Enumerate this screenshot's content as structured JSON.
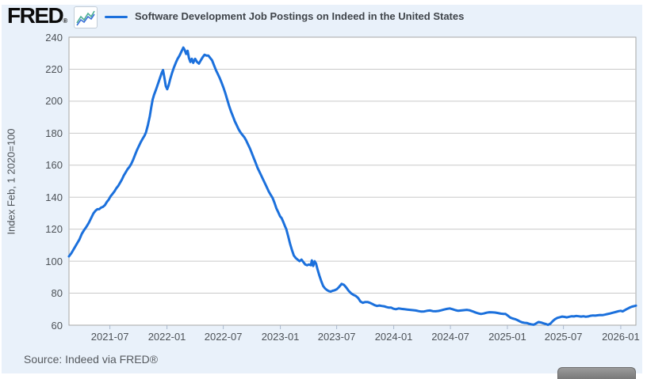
{
  "header": {
    "logo_text": "FRED",
    "logo_reg": "®",
    "title": "Software Development Job Postings on Indeed in the United States"
  },
  "footer": {
    "source": "Source: Indeed via FRED®"
  },
  "colors": {
    "series_blue": "#1b70dc",
    "logo_icon_blue": "#3a6fd8",
    "logo_icon_green": "#4caf93",
    "card_background": "#e9f1fa",
    "plot_background": "#ffffff",
    "gridline": "#c9c9c9",
    "plot_border": "#a6a6a6",
    "tick_mark": "#aab8cc"
  },
  "chart_data": {
    "type": "line",
    "title": "Software Development Job Postings on Indeed in the United States",
    "xlabel": "",
    "ylabel": "Index Feb, 1 2020=100",
    "legend_position": "top",
    "grid": "horizontal",
    "ylim": [
      60,
      240
    ],
    "y_ticks": [
      240,
      220,
      200,
      180,
      160,
      140,
      120,
      100,
      80,
      60
    ],
    "xlim": [
      0,
      60
    ],
    "x_unit": "months since 2021-02-20",
    "x_ticks": [
      {
        "label": "2021-07",
        "t": 4.33
      },
      {
        "label": "2022-01",
        "t": 10.37
      },
      {
        "label": "2022-07",
        "t": 16.33
      },
      {
        "label": "2023-01",
        "t": 22.37
      },
      {
        "label": "2023-07",
        "t": 28.33
      },
      {
        "label": "2024-01",
        "t": 34.37
      },
      {
        "label": "2024-07",
        "t": 40.37
      },
      {
        "label": "2025-01",
        "t": 46.4
      },
      {
        "label": "2025-07",
        "t": 52.33
      },
      {
        "label": "2026-01",
        "t": 58.4
      }
    ],
    "series": [
      {
        "name": "Software Development Job Postings on Indeed in the United States",
        "color": "#1b70dc",
        "points": [
          [
            0,
            103
          ],
          [
            0.25,
            105
          ],
          [
            0.5,
            107.5
          ],
          [
            0.8,
            110.5
          ],
          [
            1.1,
            113.5
          ],
          [
            1.35,
            117
          ],
          [
            1.6,
            119.5
          ],
          [
            1.85,
            121.5
          ],
          [
            2.1,
            124
          ],
          [
            2.35,
            127
          ],
          [
            2.6,
            130
          ],
          [
            2.8,
            131.5
          ],
          [
            3,
            132.5
          ],
          [
            3.2,
            132.5
          ],
          [
            3.4,
            133.5
          ],
          [
            3.6,
            134
          ],
          [
            3.8,
            135
          ],
          [
            4,
            137
          ],
          [
            4.2,
            138.5
          ],
          [
            4.4,
            140.5
          ],
          [
            4.6,
            142
          ],
          [
            4.8,
            143.5
          ],
          [
            5,
            145.5
          ],
          [
            5.2,
            147
          ],
          [
            5.4,
            149
          ],
          [
            5.6,
            151
          ],
          [
            5.8,
            153.5
          ],
          [
            6,
            155.5
          ],
          [
            6.2,
            157.5
          ],
          [
            6.4,
            159
          ],
          [
            6.6,
            161
          ],
          [
            6.8,
            163.5
          ],
          [
            7,
            166.5
          ],
          [
            7.2,
            169.5
          ],
          [
            7.4,
            172
          ],
          [
            7.6,
            174.5
          ],
          [
            7.8,
            176.5
          ],
          [
            8,
            178.5
          ],
          [
            8.15,
            180.5
          ],
          [
            8.35,
            185
          ],
          [
            8.55,
            190.5
          ],
          [
            8.7,
            196
          ],
          [
            8.85,
            201
          ],
          [
            9,
            204
          ],
          [
            9.2,
            207
          ],
          [
            9.4,
            210.5
          ],
          [
            9.6,
            214
          ],
          [
            9.8,
            217.5
          ],
          [
            9.95,
            219.5
          ],
          [
            10.1,
            214.5
          ],
          [
            10.25,
            209.5
          ],
          [
            10.4,
            207.5
          ],
          [
            10.55,
            210
          ],
          [
            10.7,
            213.5
          ],
          [
            10.9,
            217.5
          ],
          [
            11.1,
            221
          ],
          [
            11.3,
            224
          ],
          [
            11.5,
            226.5
          ],
          [
            11.7,
            228.5
          ],
          [
            11.9,
            231
          ],
          [
            12.1,
            233.5
          ],
          [
            12.25,
            232
          ],
          [
            12.4,
            229.5
          ],
          [
            12.55,
            231.5
          ],
          [
            12.7,
            227
          ],
          [
            12.85,
            224.5
          ],
          [
            13,
            226.5
          ],
          [
            13.15,
            224
          ],
          [
            13.35,
            226.5
          ],
          [
            13.55,
            224.5
          ],
          [
            13.75,
            223.5
          ],
          [
            13.95,
            225.5
          ],
          [
            14.15,
            227.5
          ],
          [
            14.35,
            229
          ],
          [
            14.55,
            228.5
          ],
          [
            14.75,
            228.5
          ],
          [
            14.95,
            227
          ],
          [
            15.15,
            225.5
          ],
          [
            15.35,
            222.5
          ],
          [
            15.55,
            219.5
          ],
          [
            15.75,
            217
          ],
          [
            15.95,
            214.5
          ],
          [
            16.15,
            211.5
          ],
          [
            16.35,
            208.5
          ],
          [
            16.55,
            205
          ],
          [
            16.75,
            201
          ],
          [
            16.95,
            197
          ],
          [
            17.15,
            193.5
          ],
          [
            17.35,
            190.5
          ],
          [
            17.55,
            187.5
          ],
          [
            17.75,
            185
          ],
          [
            17.95,
            182.5
          ],
          [
            18.15,
            180.5
          ],
          [
            18.35,
            179
          ],
          [
            18.55,
            177.5
          ],
          [
            18.75,
            175.5
          ],
          [
            18.95,
            173
          ],
          [
            19.15,
            170.5
          ],
          [
            19.35,
            167.5
          ],
          [
            19.55,
            164.5
          ],
          [
            19.75,
            161.5
          ],
          [
            19.95,
            158.5
          ],
          [
            20.15,
            156
          ],
          [
            20.35,
            153.5
          ],
          [
            20.55,
            151
          ],
          [
            20.75,
            148.5
          ],
          [
            20.95,
            146
          ],
          [
            21.15,
            143.5
          ],
          [
            21.35,
            141.5
          ],
          [
            21.55,
            139.5
          ],
          [
            21.75,
            136.5
          ],
          [
            21.95,
            133
          ],
          [
            22.15,
            130.5
          ],
          [
            22.35,
            128
          ],
          [
            22.5,
            127
          ],
          [
            22.65,
            125
          ],
          [
            22.85,
            122
          ],
          [
            23,
            120
          ],
          [
            23.2,
            115.5
          ],
          [
            23.4,
            111
          ],
          [
            23.6,
            107
          ],
          [
            23.8,
            103.5
          ],
          [
            24,
            102
          ],
          [
            24.2,
            101
          ],
          [
            24.4,
            100
          ],
          [
            24.6,
            101
          ],
          [
            24.8,
            99.5
          ],
          [
            25,
            98
          ],
          [
            25.2,
            97.5
          ],
          [
            25.4,
            98
          ],
          [
            25.6,
            97.5
          ],
          [
            25.7,
            100.5
          ],
          [
            25.85,
            97
          ],
          [
            26,
            100
          ],
          [
            26.15,
            98.5
          ],
          [
            26.3,
            95
          ],
          [
            26.5,
            91
          ],
          [
            26.7,
            87.5
          ],
          [
            26.9,
            84.5
          ],
          [
            27.1,
            83
          ],
          [
            27.3,
            82
          ],
          [
            27.5,
            81.3
          ],
          [
            27.7,
            81
          ],
          [
            27.9,
            81.5
          ],
          [
            28.1,
            81.8
          ],
          [
            28.35,
            82.5
          ],
          [
            28.6,
            84
          ],
          [
            28.85,
            85.8
          ],
          [
            29.1,
            85.2
          ],
          [
            29.35,
            83.5
          ],
          [
            29.6,
            81.5
          ],
          [
            29.85,
            80
          ],
          [
            30.1,
            79
          ],
          [
            30.35,
            78.3
          ],
          [
            30.6,
            77
          ],
          [
            30.85,
            74.8
          ],
          [
            31.1,
            74
          ],
          [
            31.35,
            74.5
          ],
          [
            31.6,
            74.5
          ],
          [
            31.85,
            74
          ],
          [
            32.1,
            73.3
          ],
          [
            32.35,
            72.5
          ],
          [
            32.6,
            72
          ],
          [
            32.85,
            72.3
          ],
          [
            33.1,
            72
          ],
          [
            33.35,
            71.8
          ],
          [
            33.6,
            71.3
          ],
          [
            33.85,
            71
          ],
          [
            34.1,
            71
          ],
          [
            34.35,
            70.3
          ],
          [
            34.6,
            70
          ],
          [
            34.9,
            70.5
          ],
          [
            35.2,
            70.2
          ],
          [
            35.5,
            70
          ],
          [
            35.8,
            69.8
          ],
          [
            36.1,
            69.6
          ],
          [
            36.4,
            69.4
          ],
          [
            36.7,
            69.2
          ],
          [
            37,
            68.8
          ],
          [
            37.3,
            68.5
          ],
          [
            37.6,
            68.6
          ],
          [
            37.9,
            69
          ],
          [
            38.2,
            69.2
          ],
          [
            38.5,
            68.8
          ],
          [
            38.8,
            68.7
          ],
          [
            39.1,
            68.9
          ],
          [
            39.4,
            69.3
          ],
          [
            39.7,
            69.8
          ],
          [
            40,
            70.2
          ],
          [
            40.3,
            70.5
          ],
          [
            40.6,
            70
          ],
          [
            40.9,
            69.4
          ],
          [
            41.2,
            69
          ],
          [
            41.5,
            69.2
          ],
          [
            41.8,
            69.4
          ],
          [
            42.1,
            69.6
          ],
          [
            42.4,
            69.3
          ],
          [
            42.7,
            68.7
          ],
          [
            43,
            68
          ],
          [
            43.3,
            67.4
          ],
          [
            43.6,
            67
          ],
          [
            43.9,
            67.3
          ],
          [
            44.2,
            67.8
          ],
          [
            44.5,
            68.1
          ],
          [
            44.8,
            68
          ],
          [
            45.1,
            67.9
          ],
          [
            45.4,
            67.6
          ],
          [
            45.7,
            67.2
          ],
          [
            46,
            67
          ],
          [
            46.2,
            67
          ],
          [
            46.45,
            66
          ],
          [
            46.7,
            64.8
          ],
          [
            46.95,
            64.2
          ],
          [
            47.2,
            63.8
          ],
          [
            47.45,
            63.2
          ],
          [
            47.7,
            62.4
          ],
          [
            47.95,
            61.8
          ],
          [
            48.2,
            61.5
          ],
          [
            48.45,
            61.4
          ],
          [
            48.7,
            60.9
          ],
          [
            48.95,
            60.5
          ],
          [
            49.2,
            60.3
          ],
          [
            49.45,
            61.2
          ],
          [
            49.7,
            62
          ],
          [
            49.95,
            61.7
          ],
          [
            50.2,
            61.2
          ],
          [
            50.45,
            60.8
          ],
          [
            50.7,
            60.2
          ],
          [
            50.95,
            61
          ],
          [
            51.2,
            62.5
          ],
          [
            51.45,
            63.8
          ],
          [
            51.7,
            64.6
          ],
          [
            51.95,
            65
          ],
          [
            52.2,
            65.4
          ],
          [
            52.45,
            65.2
          ],
          [
            52.7,
            64.9
          ],
          [
            52.95,
            65.3
          ],
          [
            53.2,
            65.6
          ],
          [
            53.45,
            65.5
          ],
          [
            53.7,
            65.8
          ],
          [
            53.95,
            65.6
          ],
          [
            54.2,
            65.4
          ],
          [
            54.45,
            65.6
          ],
          [
            54.7,
            65.3
          ],
          [
            54.95,
            65.5
          ],
          [
            55.2,
            65.9
          ],
          [
            55.45,
            66.1
          ],
          [
            55.7,
            66
          ],
          [
            55.95,
            66.2
          ],
          [
            56.2,
            66.4
          ],
          [
            56.45,
            66.3
          ],
          [
            56.7,
            66.6
          ],
          [
            56.95,
            66.9
          ],
          [
            57.2,
            67.2
          ],
          [
            57.45,
            67.6
          ],
          [
            57.7,
            68
          ],
          [
            57.95,
            68.4
          ],
          [
            58.2,
            68.8
          ],
          [
            58.4,
            69
          ],
          [
            58.6,
            68.6
          ],
          [
            58.8,
            69.3
          ],
          [
            59,
            70
          ],
          [
            59.2,
            70.6
          ],
          [
            59.4,
            71.2
          ],
          [
            59.6,
            71.6
          ],
          [
            59.8,
            71.9
          ],
          [
            60,
            72.2
          ]
        ]
      }
    ]
  }
}
